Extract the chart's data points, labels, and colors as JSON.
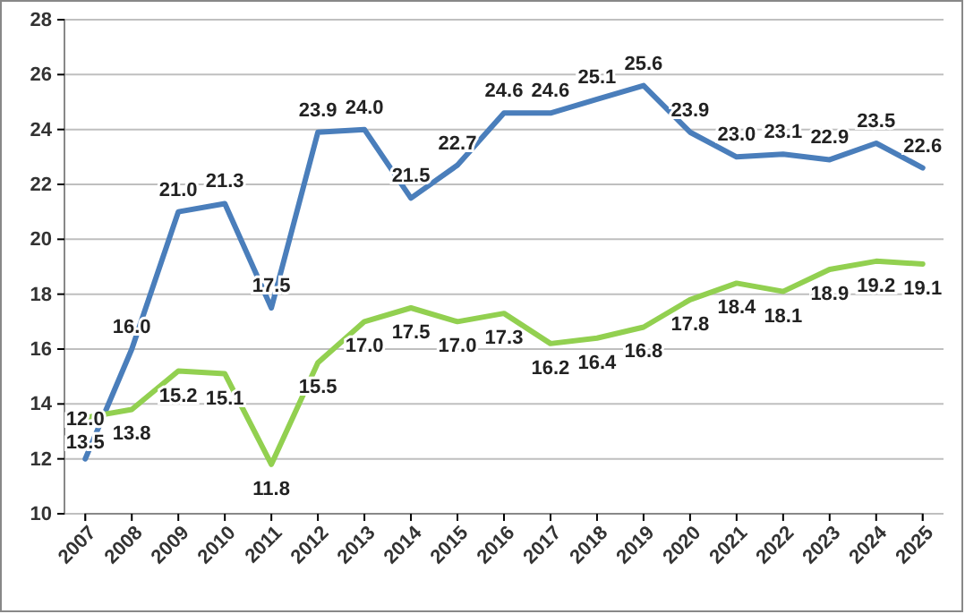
{
  "chart_data": {
    "type": "line",
    "categories": [
      "2007",
      "2008",
      "2009",
      "2010",
      "2011",
      "2012",
      "2013",
      "2014",
      "2015",
      "2016",
      "2017",
      "2018",
      "2019",
      "2020",
      "2021",
      "2022",
      "2023",
      "2024",
      "2025"
    ],
    "series": [
      {
        "color": "#4a7ebb",
        "values": [
          12.0,
          16.0,
          21.0,
          21.3,
          17.5,
          23.9,
          24.0,
          21.5,
          22.7,
          24.6,
          24.6,
          25.1,
          25.6,
          23.9,
          23.0,
          23.1,
          22.9,
          23.5,
          22.6
        ],
        "value_labels": [
          "12.0",
          "16.0",
          "21.0",
          "21.3",
          "17.5",
          "23.9",
          "24.0",
          "21.5",
          "22.7",
          "24.6",
          "24.6",
          "25.1",
          "25.6",
          "23.9",
          "23.0",
          "23.1",
          "22.9",
          "23.5",
          "22.6"
        ]
      },
      {
        "color": "#92d050",
        "values": [
          13.5,
          13.8,
          15.2,
          15.1,
          11.8,
          15.5,
          17.0,
          17.5,
          17.0,
          17.3,
          16.2,
          16.4,
          16.8,
          17.8,
          18.4,
          18.1,
          18.9,
          19.2,
          19.1
        ],
        "value_labels": [
          "13.5",
          "13.8",
          "15.2",
          "15.1",
          "11.8",
          "15.5",
          "17.0",
          "17.5",
          "17.0",
          "17.3",
          "16.2",
          "16.4",
          "16.8",
          "17.8",
          "18.4",
          "18.1",
          "18.9",
          "19.2",
          "19.1"
        ]
      }
    ],
    "ylim": [
      10,
      28
    ],
    "yticks": [
      10,
      12,
      14,
      16,
      18,
      20,
      22,
      24,
      26,
      28
    ],
    "grid": "y",
    "marker": "none",
    "line_style": "solid"
  }
}
